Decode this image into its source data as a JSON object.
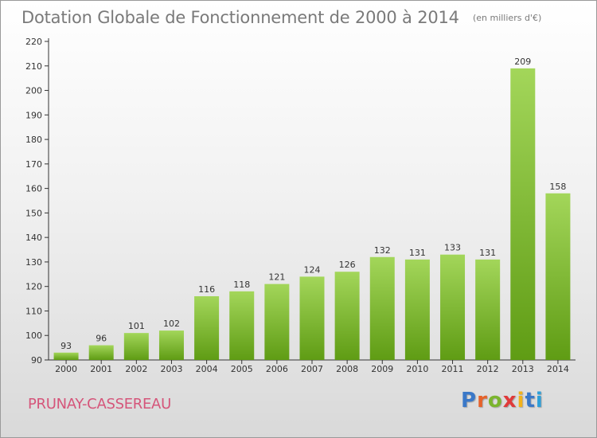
{
  "header": {
    "title": "Dotation Globale de Fonctionnement de 2000 à 2014",
    "unit": "(en milliers d'€)"
  },
  "footer": {
    "place_name": "PRUNAY-CASSEREAU",
    "brand": "Proxiti",
    "brand_colors": [
      "#3a78c8",
      "#e6622a",
      "#7bb52e",
      "#e03a3a",
      "#f2b21b",
      "#3a78c8",
      "#2e9fd8"
    ]
  },
  "colors": {
    "bar_light": "#a3d65a",
    "bar_dark": "#5f9c14",
    "title": "#7a7a7a",
    "place_name": "#d5557a"
  },
  "chart_data": {
    "type": "bar",
    "title": "Dotation Globale de Fonctionnement de 2000 à 2014",
    "subtitle": "(en milliers d'€)",
    "xlabel": "",
    "ylabel": "",
    "categories": [
      "2000",
      "2001",
      "2002",
      "2003",
      "2004",
      "2005",
      "2006",
      "2007",
      "2008",
      "2009",
      "2010",
      "2011",
      "2012",
      "2013",
      "2014"
    ],
    "values": [
      93,
      96,
      101,
      102,
      116,
      118,
      121,
      124,
      126,
      132,
      131,
      133,
      131,
      209,
      158
    ],
    "ylim": [
      90,
      220
    ],
    "yticks": [
      90,
      100,
      110,
      120,
      130,
      140,
      150,
      160,
      170,
      180,
      190,
      200,
      210,
      220
    ],
    "grid": false,
    "data_labels": true
  }
}
